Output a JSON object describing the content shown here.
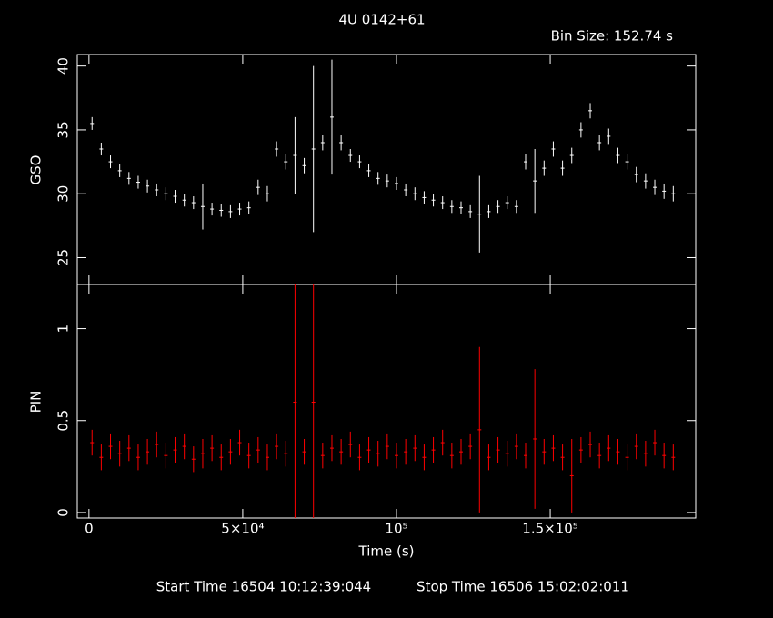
{
  "chart_data": [
    {
      "type": "errorbar",
      "title": "4U 0142+61",
      "subtitle": "Bin Size: 152.74 s",
      "ylabel": "GSO",
      "color": "#ffffff",
      "x": [
        1000,
        4000,
        7000,
        10000,
        13000,
        16000,
        19000,
        22000,
        25000,
        28000,
        31000,
        34000,
        37000,
        40000,
        43000,
        46000,
        49000,
        52000,
        55000,
        58000,
        61000,
        64000,
        67000,
        70000,
        73000,
        76000,
        79000,
        82000,
        85000,
        88000,
        91000,
        94000,
        97000,
        100000,
        103000,
        106000,
        109000,
        112000,
        115000,
        118000,
        121000,
        124000,
        127000,
        130000,
        133000,
        136000,
        139000,
        142000,
        145000,
        148000,
        151000,
        154000,
        157000,
        160000,
        163000,
        166000,
        169000,
        172000,
        175000,
        178000,
        181000,
        184000,
        187000,
        190000
      ],
      "values": [
        35.5,
        33.5,
        32.5,
        31.8,
        31.2,
        30.9,
        30.6,
        30.3,
        30.0,
        29.8,
        29.5,
        29.3,
        29.0,
        28.8,
        28.7,
        28.6,
        28.8,
        28.9,
        30.5,
        30.0,
        33.5,
        32.5,
        33.0,
        32.2,
        33.5,
        34.0,
        36.0,
        34.0,
        33.0,
        32.5,
        31.8,
        31.2,
        31.0,
        30.8,
        30.3,
        30.0,
        29.7,
        29.5,
        29.3,
        29.0,
        28.9,
        28.6,
        28.4,
        28.6,
        29.0,
        29.3,
        29.0,
        32.5,
        31.0,
        32.0,
        33.5,
        32.0,
        33.0,
        35.0,
        36.5,
        34.0,
        34.5,
        33.0,
        32.5,
        31.5,
        31.0,
        30.5,
        30.2,
        30.0
      ],
      "errors": [
        0.5,
        0.5,
        0.5,
        0.5,
        0.5,
        0.5,
        0.5,
        0.5,
        0.5,
        0.5,
        0.5,
        0.5,
        1.8,
        0.5,
        0.5,
        0.5,
        0.5,
        0.5,
        0.6,
        0.6,
        0.6,
        0.6,
        3.0,
        0.6,
        6.5,
        0.6,
        4.5,
        0.6,
        0.5,
        0.5,
        0.5,
        0.5,
        0.5,
        0.5,
        0.5,
        0.5,
        0.5,
        0.5,
        0.5,
        0.5,
        0.5,
        0.5,
        3.0,
        0.5,
        0.5,
        0.5,
        0.5,
        0.6,
        2.5,
        0.6,
        0.6,
        0.6,
        0.6,
        0.6,
        0.6,
        0.6,
        0.6,
        0.6,
        0.6,
        0.6,
        0.6,
        0.6,
        0.6,
        0.6
      ],
      "xlim": [
        -3800,
        197300
      ],
      "ylim": [
        22.9,
        40.9
      ],
      "xticks": [
        0,
        50000,
        100000,
        150000
      ],
      "yticks": [
        25,
        30,
        35,
        40
      ]
    },
    {
      "type": "errorbar",
      "ylabel": "PIN",
      "xlabel": "Time (s)",
      "color": "#ff0000",
      "annotations": [
        "Start Time 16504 10:12:39:044",
        "Stop Time 16506 15:02:02:011"
      ],
      "x": [
        1000,
        4000,
        7000,
        10000,
        13000,
        16000,
        19000,
        22000,
        25000,
        28000,
        31000,
        34000,
        37000,
        40000,
        43000,
        46000,
        49000,
        52000,
        55000,
        58000,
        61000,
        64000,
        67000,
        70000,
        73000,
        76000,
        79000,
        82000,
        85000,
        88000,
        91000,
        94000,
        97000,
        100000,
        103000,
        106000,
        109000,
        112000,
        115000,
        118000,
        121000,
        124000,
        127000,
        130000,
        133000,
        136000,
        139000,
        142000,
        145000,
        148000,
        151000,
        154000,
        157000,
        160000,
        163000,
        166000,
        169000,
        172000,
        175000,
        178000,
        181000,
        184000,
        187000,
        190000
      ],
      "values": [
        0.38,
        0.3,
        0.36,
        0.32,
        0.35,
        0.3,
        0.33,
        0.37,
        0.31,
        0.34,
        0.36,
        0.29,
        0.32,
        0.35,
        0.3,
        0.33,
        0.38,
        0.31,
        0.34,
        0.3,
        0.36,
        0.32,
        0.6,
        0.33,
        0.6,
        0.31,
        0.35,
        0.33,
        0.37,
        0.3,
        0.34,
        0.32,
        0.36,
        0.31,
        0.33,
        0.35,
        0.3,
        0.34,
        0.38,
        0.31,
        0.33,
        0.36,
        0.45,
        0.3,
        0.34,
        0.32,
        0.36,
        0.31,
        0.4,
        0.33,
        0.35,
        0.3,
        0.2,
        0.34,
        0.37,
        0.31,
        0.35,
        0.33,
        0.3,
        0.36,
        0.32,
        0.38,
        0.31,
        0.3
      ],
      "errors": [
        0.07,
        0.07,
        0.07,
        0.07,
        0.07,
        0.07,
        0.07,
        0.07,
        0.07,
        0.07,
        0.07,
        0.07,
        0.08,
        0.07,
        0.07,
        0.07,
        0.07,
        0.07,
        0.07,
        0.07,
        0.07,
        0.07,
        0.65,
        0.07,
        0.65,
        0.07,
        0.07,
        0.07,
        0.07,
        0.07,
        0.07,
        0.07,
        0.07,
        0.07,
        0.07,
        0.07,
        0.07,
        0.07,
        0.07,
        0.07,
        0.07,
        0.07,
        0.45,
        0.07,
        0.07,
        0.07,
        0.07,
        0.07,
        0.38,
        0.07,
        0.07,
        0.07,
        0.2,
        0.07,
        0.07,
        0.07,
        0.07,
        0.07,
        0.07,
        0.07,
        0.07,
        0.07,
        0.07,
        0.07
      ],
      "xlim": [
        -3800,
        197300
      ],
      "ylim": [
        -0.03,
        1.24
      ],
      "xticks": [
        0,
        {
          "value": 50000,
          "label": "5×10⁴"
        },
        {
          "value": 100000,
          "label": "10⁵"
        },
        {
          "value": 150000,
          "label": "1.5×10⁵"
        }
      ],
      "yticks": [
        0,
        0.5,
        1
      ]
    }
  ]
}
